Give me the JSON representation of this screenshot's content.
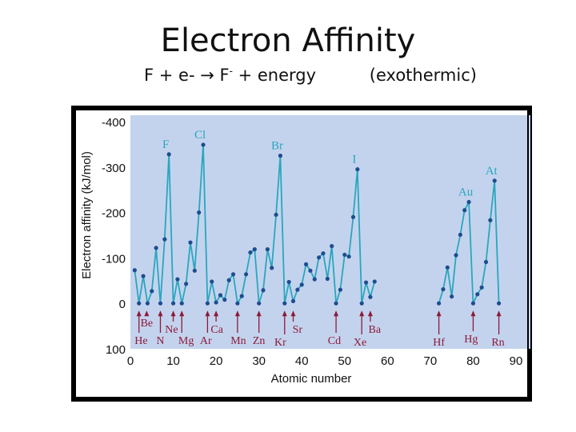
{
  "slide": {
    "title": "Electron Affinity",
    "equation_left": "F + e- → F",
    "equation_sup": "-",
    "equation_right": " + energy",
    "note": "(exothermic)"
  },
  "colors": {
    "plot_bg": "#c4d3ed",
    "line": "#2aa6bf",
    "marker": "#1d4d8f",
    "label_red": "#8b1a3a",
    "frame": "#000000"
  },
  "chart_data": {
    "type": "line",
    "xlabel": "Atomic number",
    "ylabel": "Electron affinity (kJ/mol)",
    "xlim": [
      0,
      90
    ],
    "ylim": [
      100,
      -400
    ],
    "x_ticks": [
      "0",
      "10",
      "20",
      "30",
      "40",
      "50",
      "60",
      "70",
      "80",
      "90"
    ],
    "y_ticks": [
      "-400",
      "-300",
      "-200",
      "-100",
      "0",
      "100"
    ],
    "segments": [
      {
        "x": [
          1,
          2,
          3,
          4,
          5,
          6,
          7,
          8,
          9,
          10,
          11,
          12,
          13,
          14,
          15,
          16,
          17,
          18,
          19,
          20,
          21,
          22,
          23,
          24,
          25,
          26,
          27,
          28,
          29,
          30,
          31,
          32,
          33,
          34,
          35,
          36,
          37,
          38,
          39,
          40,
          41,
          42,
          43,
          44,
          45,
          46,
          47,
          48,
          49,
          50,
          51,
          52,
          53,
          54,
          55,
          56,
          57
        ],
        "y": [
          -73,
          0,
          -60,
          0,
          -27,
          -122,
          0,
          -141,
          -328,
          0,
          -53,
          0,
          -43,
          -134,
          -72,
          -200,
          -349,
          0,
          -48,
          -2,
          -18,
          -8,
          -51,
          -64,
          0,
          -16,
          -64,
          -112,
          -119,
          0,
          -29,
          -119,
          -78,
          -195,
          -325,
          0,
          -47,
          -5,
          -30,
          -41,
          -86,
          -72,
          -53,
          -101,
          -110,
          -54,
          -126,
          0,
          -30,
          -107,
          -103,
          -190,
          -295,
          0,
          -46,
          -14,
          -48
        ]
      },
      {
        "x": [
          72,
          73,
          74,
          75,
          76,
          77,
          78,
          79,
          80,
          81,
          82,
          83,
          84,
          85,
          86
        ],
        "y": [
          0,
          -31,
          -79,
          -15,
          -106,
          -151,
          -205,
          -223,
          0,
          -20,
          -35,
          -91,
          -183,
          -270,
          0
        ]
      }
    ],
    "element_labels": [
      {
        "text": "F",
        "x": 9,
        "y": -328
      },
      {
        "text": "Cl",
        "x": 17,
        "y": -349
      },
      {
        "text": "Br",
        "x": 35,
        "y": -325
      },
      {
        "text": "I",
        "x": 53,
        "y": -295
      },
      {
        "text": "Au",
        "x": 79,
        "y": -223
      },
      {
        "text": "At",
        "x": 85,
        "y": -270
      }
    ],
    "zero_labels": [
      "Be",
      "Ne",
      "He",
      "N",
      "Mg",
      "Ar",
      "Ca",
      "Mn",
      "Zn",
      "Kr",
      "Sr",
      "Cd",
      "Xe",
      "Ba",
      "Hf",
      "Hg",
      "Rn"
    ]
  }
}
